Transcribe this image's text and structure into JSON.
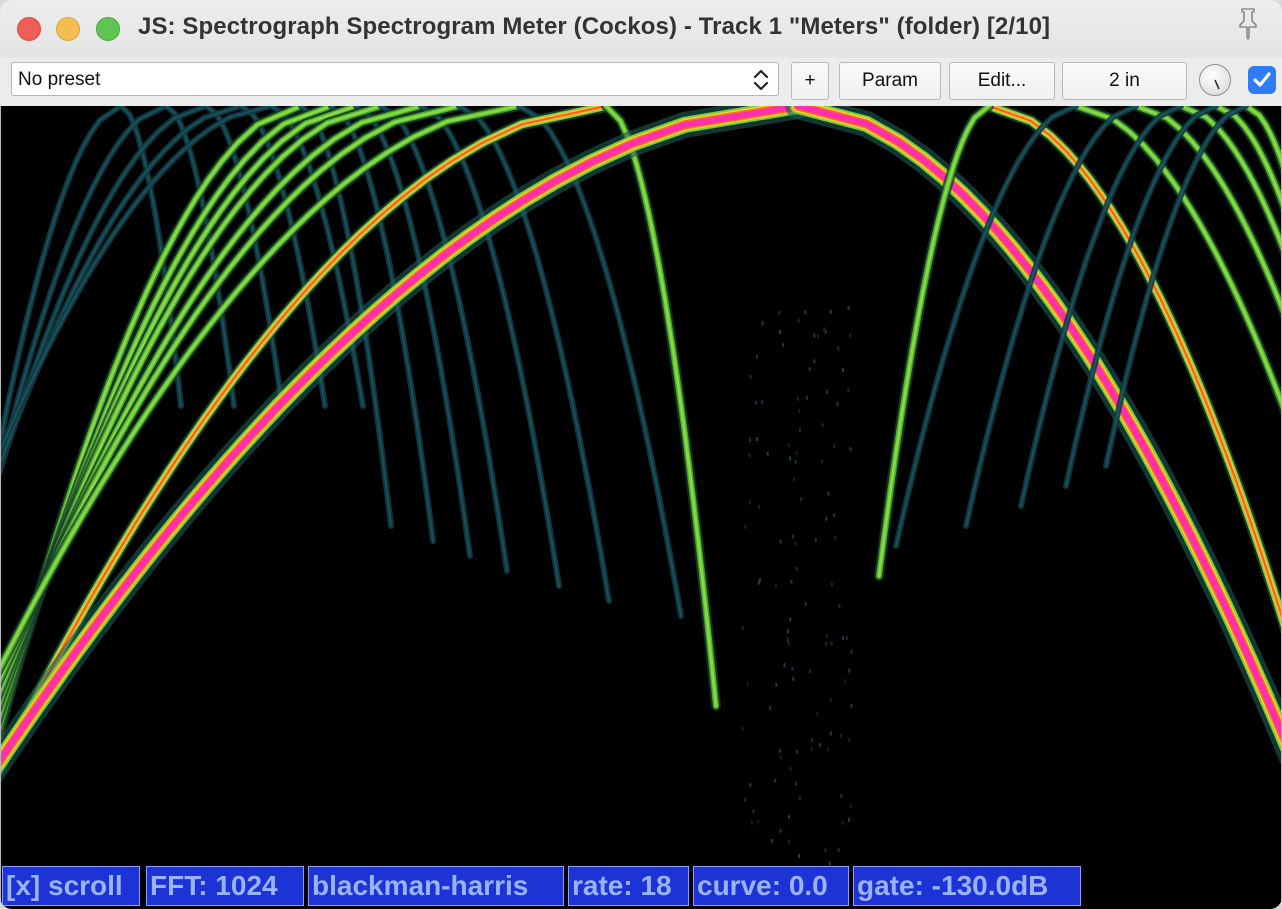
{
  "window": {
    "title": "JS: Spectrograph Spectrogram Meter (Cockos) - Track 1 \"Meters\" (folder) [2/10]"
  },
  "toolbar": {
    "preset_value": "No preset",
    "add_label": "+",
    "param_label": "Param",
    "edit_label": "Edit...",
    "io_label": "2 in",
    "enabled_checked": true
  },
  "status": {
    "scroll": "[x] scroll",
    "fft": "FFT: 1024",
    "window_fn": "blackman-harris",
    "rate": "rate: 18",
    "curve": "curve: 0.0",
    "gate": "gate: -130.0dB"
  },
  "icons": {
    "close": "close-icon",
    "minimize": "minimize-icon",
    "zoom": "zoom-icon",
    "pin": "pin-icon",
    "stepper": "chevron-updown-icon",
    "knob": "knob-icon",
    "checkbox": "checkmark-icon"
  },
  "colors": {
    "background": "#000000",
    "status_bg": "#1d33d6",
    "status_text": "#9bb3ff",
    "accent": "#2f7cf6",
    "fundamental": "#ff2fb0",
    "harmonic": "#7ed03a"
  }
}
